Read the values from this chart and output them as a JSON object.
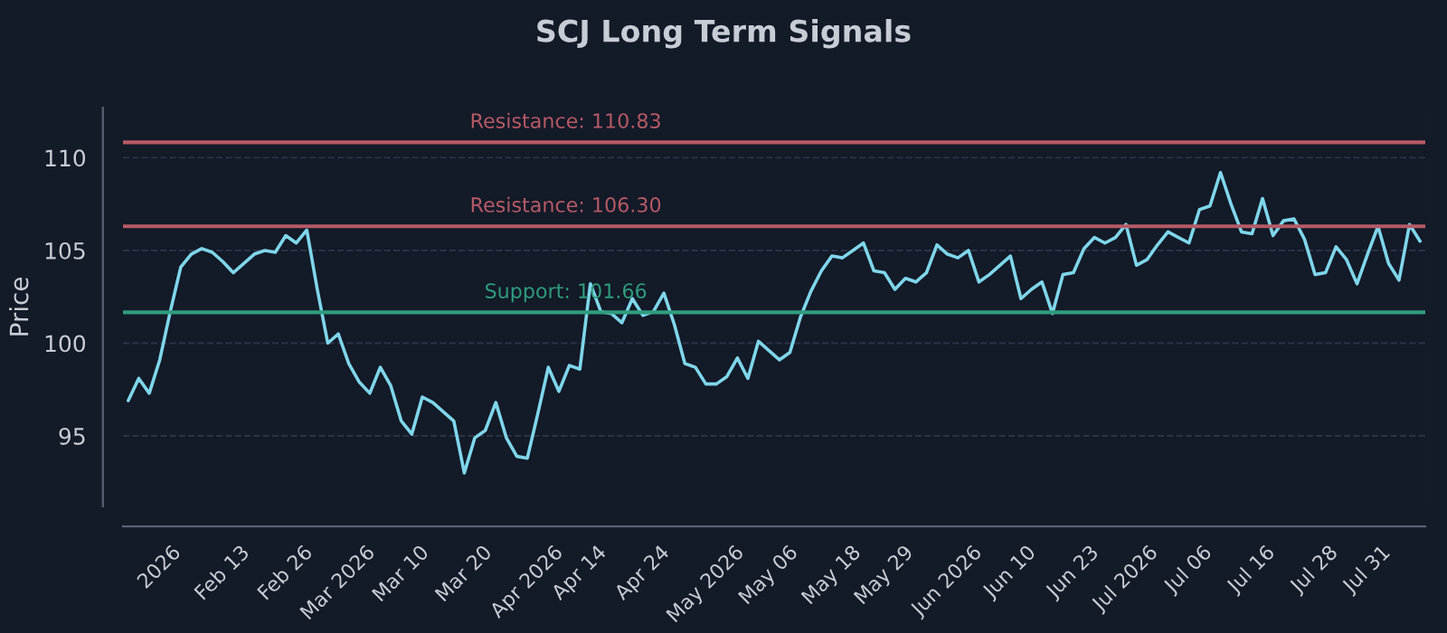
{
  "chart_data": {
    "type": "line",
    "title": "SCJ Long Term Signals",
    "ylabel": "Price",
    "categories": [
      null,
      null,
      null,
      "2026",
      null,
      null,
      null,
      null,
      null,
      "Feb 13",
      null,
      null,
      null,
      null,
      null,
      "Feb 26",
      null,
      null,
      null,
      null,
      "Mar 2026",
      null,
      null,
      null,
      null,
      null,
      "Mar 10",
      null,
      null,
      null,
      null,
      null,
      "Mar 20",
      null,
      null,
      null,
      null,
      null,
      "Apr 2026",
      null,
      null,
      null,
      null,
      "Apr 14",
      null,
      null,
      null,
      null,
      null,
      "Apr 24",
      null,
      null,
      null,
      null,
      null,
      "May 2026",
      null,
      null,
      null,
      null,
      null,
      "May 06",
      null,
      null,
      null,
      null,
      null,
      "May 18",
      null,
      null,
      null,
      null,
      "May 29",
      null,
      null,
      null,
      null,
      null,
      "Jun 2026",
      null,
      null,
      null,
      null,
      null,
      "Jun 10",
      null,
      null,
      null,
      null,
      null,
      "Jun 23",
      null,
      null,
      null,
      null,
      "Jul 2026",
      null,
      null,
      null,
      null,
      null,
      "Jul 06",
      null,
      null,
      null,
      null,
      null,
      "Jul 16",
      null,
      null,
      null,
      null,
      null,
      "Jul 28",
      null,
      null,
      null,
      null,
      "Jul 31",
      null,
      null,
      null,
      null,
      null
    ],
    "series": [
      {
        "color": "#7fd6ea",
        "values": [
          96.9,
          98.1,
          97.3,
          99.1,
          101.7,
          104.1,
          104.8,
          105.1,
          104.9,
          104.4,
          103.8,
          104.3,
          104.8,
          105.0,
          104.9,
          105.8,
          105.4,
          106.1,
          102.9,
          100.0,
          100.5,
          98.9,
          97.9,
          97.3,
          98.7,
          97.7,
          95.8,
          95.1,
          97.1,
          96.8,
          96.3,
          95.8,
          93.0,
          94.9,
          95.3,
          96.8,
          94.9,
          93.9,
          93.8,
          96.2,
          98.7,
          97.4,
          98.8,
          98.6,
          103.2,
          101.7,
          101.6,
          101.1,
          102.4,
          101.5,
          101.7,
          102.7,
          101.0,
          98.9,
          98.7,
          97.8,
          97.8,
          98.2,
          99.2,
          98.1,
          100.1,
          99.6,
          99.1,
          99.5,
          101.4,
          102.8,
          103.9,
          104.7,
          104.6,
          105.0,
          105.4,
          103.9,
          103.8,
          102.9,
          103.5,
          103.3,
          103.8,
          105.3,
          104.8,
          104.6,
          105.0,
          103.3,
          103.7,
          104.2,
          104.7,
          102.4,
          102.9,
          103.3,
          101.6,
          103.7,
          103.8,
          105.1,
          105.7,
          105.4,
          105.7,
          106.4,
          104.2,
          104.5,
          105.3,
          106.0,
          105.7,
          105.4,
          107.2,
          107.4,
          109.2,
          107.5,
          106.0,
          105.9,
          107.8,
          105.8,
          106.6,
          106.7,
          105.6,
          103.7,
          103.8,
          105.2,
          104.5,
          103.2,
          104.8,
          106.3,
          104.3,
          103.4,
          106.4,
          105.5
        ]
      }
    ],
    "ylim": [
      91.2,
      112.7
    ],
    "yticks": [
      95,
      100,
      105,
      110
    ],
    "grid": "y",
    "ref_lines": [
      {
        "axis": "y",
        "value": 110.83,
        "label": "Resistance: 110.83",
        "color": "#b55a66"
      },
      {
        "axis": "y",
        "value": 106.3,
        "label": "Resistance: 106.30",
        "color": "#b55a66"
      },
      {
        "axis": "y",
        "value": 101.66,
        "label": "Support: 101.66",
        "color": "#2f9c7c"
      }
    ]
  }
}
